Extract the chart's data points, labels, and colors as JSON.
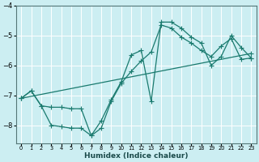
{
  "xlabel": "Humidex (Indice chaleur)",
  "bg_color": "#cceef2",
  "grid_color": "#ffffff",
  "line_color": "#1a7a6e",
  "xlim": [
    -0.5,
    23.5
  ],
  "ylim": [
    -8.6,
    -4.0
  ],
  "yticks": [
    -8,
    -7,
    -6,
    -5,
    -4
  ],
  "xticks": [
    0,
    1,
    2,
    3,
    4,
    5,
    6,
    7,
    8,
    9,
    10,
    11,
    12,
    13,
    14,
    15,
    16,
    17,
    18,
    19,
    20,
    21,
    22,
    23
  ],
  "series1_x": [
    0,
    1,
    2,
    3,
    4,
    5,
    6,
    7,
    8,
    9,
    10,
    11,
    12,
    13,
    14,
    15,
    16,
    17,
    18,
    19,
    20,
    21,
    22,
    23
  ],
  "series1_y": [
    -7.1,
    -6.85,
    -7.35,
    -7.4,
    -7.4,
    -7.45,
    -7.45,
    -8.35,
    -7.85,
    -7.15,
    -6.55,
    -5.65,
    -5.5,
    -7.2,
    -4.55,
    -4.55,
    -4.75,
    -5.05,
    -5.25,
    -6.0,
    -5.7,
    -5.0,
    -5.4,
    -5.75
  ],
  "series2_x": [
    0,
    1,
    2,
    3,
    4,
    5,
    6,
    7,
    8,
    9,
    10,
    11,
    12,
    13,
    14,
    15,
    16,
    17,
    18,
    19,
    20,
    21,
    22,
    23
  ],
  "series2_y": [
    -7.1,
    -6.85,
    -7.35,
    -8.0,
    -8.05,
    -8.1,
    -8.1,
    -8.35,
    -8.1,
    -7.2,
    -6.6,
    -6.2,
    -5.85,
    -5.55,
    -4.65,
    -4.75,
    -5.05,
    -5.25,
    -5.5,
    -5.7,
    -5.35,
    -5.1,
    -5.8,
    -5.75
  ],
  "series3_x": [
    0,
    23
  ],
  "series3_y": [
    -7.1,
    -5.6
  ]
}
